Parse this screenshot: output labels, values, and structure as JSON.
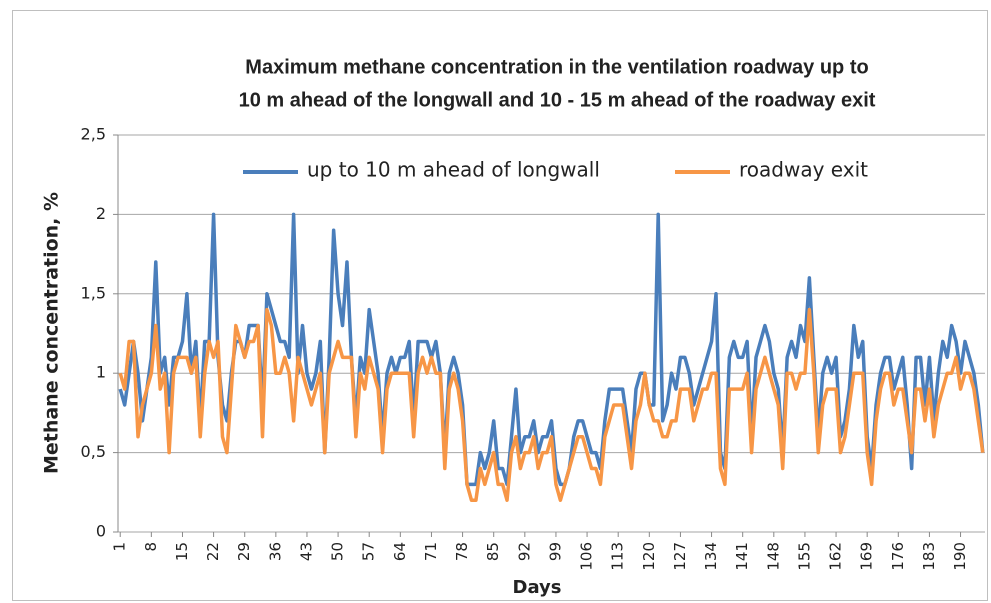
{
  "chart_data": {
    "type": "line",
    "title": [
      "Maximum methane concentration in the ventilation roadway up to",
      "10 m ahead of the longwall and 10 - 15 m ahead of the roadway exit"
    ],
    "x_label": "Days",
    "y_label": "Methane concentration, %",
    "ylim": [
      0,
      2.5
    ],
    "yticks": [
      0,
      {
        "value": 0.5,
        "label": "0,5"
      },
      1,
      {
        "value": 1.5,
        "label": "1,5"
      },
      2,
      {
        "value": 2.5,
        "label": "2,5"
      }
    ],
    "grid": true,
    "legend": "top",
    "categories": [
      1,
      null,
      null,
      null,
      null,
      null,
      null,
      8,
      null,
      null,
      null,
      null,
      null,
      null,
      15,
      null,
      null,
      null,
      null,
      null,
      null,
      22,
      null,
      null,
      null,
      null,
      null,
      null,
      29,
      null,
      null,
      null,
      null,
      null,
      null,
      36,
      null,
      null,
      null,
      null,
      null,
      null,
      43,
      null,
      null,
      null,
      null,
      null,
      null,
      50,
      null,
      null,
      null,
      null,
      null,
      null,
      57,
      null,
      null,
      null,
      null,
      null,
      null,
      64,
      null,
      null,
      null,
      null,
      null,
      null,
      71,
      null,
      null,
      null,
      null,
      null,
      null,
      78,
      null,
      null,
      null,
      null,
      null,
      null,
      85,
      null,
      null,
      null,
      null,
      null,
      null,
      92,
      null,
      null,
      null,
      null,
      null,
      null,
      99,
      null,
      null,
      null,
      null,
      null,
      null,
      106,
      null,
      null,
      null,
      null,
      null,
      null,
      113,
      null,
      null,
      null,
      null,
      null,
      null,
      120,
      null,
      null,
      null,
      null,
      null,
      null,
      127,
      null,
      null,
      null,
      null,
      null,
      null,
      134,
      null,
      null,
      null,
      null,
      null,
      null,
      141,
      null,
      null,
      null,
      null,
      null,
      null,
      148,
      null,
      null,
      null,
      null,
      null,
      null,
      155,
      null,
      null,
      null,
      null,
      null,
      null,
      162,
      null,
      null,
      null,
      null,
      null,
      null,
      169,
      null,
      null,
      null,
      null,
      null,
      null,
      176,
      null,
      null,
      null,
      null,
      null,
      null,
      183,
      null,
      null,
      null,
      null,
      null,
      null,
      190,
      null,
      null,
      null,
      null,
      null
    ],
    "series": [
      {
        "name": "up to 10 m ahead of longwall",
        "color": "#4a7ebb",
        "values": [
          0.9,
          0.8,
          1.0,
          1.2,
          1.0,
          0.7,
          0.9,
          1.1,
          1.7,
          1.0,
          1.1,
          0.8,
          1.1,
          1.1,
          1.2,
          1.5,
          1.0,
          1.2,
          0.7,
          1.2,
          1.2,
          2.0,
          1.1,
          0.8,
          0.7,
          1.0,
          1.2,
          1.2,
          1.1,
          1.3,
          1.3,
          1.3,
          0.8,
          1.5,
          1.4,
          1.3,
          1.2,
          1.2,
          1.1,
          2.0,
          1.0,
          1.3,
          1.0,
          0.9,
          1.0,
          1.2,
          0.5,
          1.1,
          1.9,
          1.5,
          1.3,
          1.7,
          1.1,
          0.7,
          1.1,
          1.0,
          1.4,
          1.2,
          1.0,
          0.6,
          1.0,
          1.1,
          1.0,
          1.1,
          1.1,
          1.2,
          0.7,
          1.2,
          1.2,
          1.2,
          1.1,
          1.2,
          1.0,
          0.5,
          1.0,
          1.1,
          1.0,
          0.8,
          0.3,
          0.3,
          0.3,
          0.5,
          0.4,
          0.5,
          0.7,
          0.4,
          0.4,
          0.3,
          0.6,
          0.9,
          0.5,
          0.6,
          0.6,
          0.7,
          0.5,
          0.6,
          0.6,
          0.7,
          0.4,
          0.3,
          0.3,
          0.4,
          0.6,
          0.7,
          0.7,
          0.6,
          0.5,
          0.5,
          0.4,
          0.7,
          0.9,
          0.9,
          0.9,
          0.9,
          0.7,
          0.5,
          0.9,
          1.0,
          1.0,
          0.8,
          0.8,
          2.0,
          0.7,
          0.8,
          1.0,
          0.9,
          1.1,
          1.1,
          1.0,
          0.8,
          0.9,
          1.0,
          1.1,
          1.2,
          1.5,
          0.5,
          0.4,
          1.1,
          1.2,
          1.1,
          1.1,
          1.2,
          0.6,
          1.1,
          1.2,
          1.3,
          1.2,
          1.0,
          0.9,
          0.5,
          1.1,
          1.2,
          1.1,
          1.3,
          1.2,
          1.6,
          1.1,
          0.6,
          1.0,
          1.1,
          1.0,
          1.1,
          0.6,
          0.7,
          0.9,
          1.3,
          1.1,
          1.2,
          0.6,
          0.4,
          0.8,
          1.0,
          1.1,
          1.1,
          0.9,
          1.0,
          1.1,
          0.8,
          0.4,
          1.1,
          1.1,
          0.8,
          1.1,
          0.7,
          1.0,
          1.2,
          1.1,
          1.3,
          1.2,
          1.0,
          1.2,
          1.1,
          1.0,
          0.8,
          0.5
        ]
      },
      {
        "name": "roadway exit",
        "color": "#f79646",
        "values": [
          1.0,
          0.9,
          1.2,
          1.2,
          0.6,
          0.8,
          0.9,
          1.0,
          1.3,
          0.9,
          1.0,
          0.5,
          1.0,
          1.1,
          1.1,
          1.1,
          1.0,
          1.1,
          0.6,
          1.0,
          1.2,
          1.1,
          1.2,
          0.6,
          0.5,
          0.9,
          1.3,
          1.2,
          1.1,
          1.2,
          1.2,
          1.3,
          0.6,
          1.4,
          1.3,
          1.0,
          1.0,
          1.1,
          1.0,
          0.7,
          1.1,
          1.0,
          0.9,
          0.8,
          0.9,
          1.0,
          0.5,
          1.0,
          1.1,
          1.2,
          1.1,
          1.1,
          1.1,
          0.6,
          1.0,
          0.9,
          1.1,
          1.0,
          0.9,
          0.5,
          0.9,
          1.0,
          1.0,
          1.0,
          1.0,
          1.0,
          0.6,
          1.0,
          1.1,
          1.0,
          1.1,
          1.0,
          1.0,
          0.4,
          0.9,
          1.0,
          0.9,
          0.7,
          0.3,
          0.2,
          0.2,
          0.4,
          0.3,
          0.4,
          0.5,
          0.3,
          0.3,
          0.2,
          0.5,
          0.6,
          0.4,
          0.5,
          0.5,
          0.6,
          0.4,
          0.5,
          0.5,
          0.6,
          0.3,
          0.2,
          0.3,
          0.4,
          0.5,
          0.6,
          0.6,
          0.5,
          0.4,
          0.4,
          0.3,
          0.6,
          0.7,
          0.8,
          0.8,
          0.8,
          0.6,
          0.4,
          0.7,
          0.8,
          1.0,
          0.8,
          0.7,
          0.7,
          0.6,
          0.6,
          0.7,
          0.7,
          0.9,
          0.9,
          0.9,
          0.7,
          0.8,
          0.9,
          0.9,
          1.0,
          1.0,
          0.4,
          0.3,
          0.9,
          0.9,
          0.9,
          0.9,
          1.0,
          0.5,
          0.9,
          1.0,
          1.1,
          1.0,
          0.9,
          0.8,
          0.4,
          1.0,
          1.0,
          0.9,
          1.0,
          1.0,
          1.4,
          1.0,
          0.5,
          0.8,
          0.9,
          0.9,
          0.9,
          0.5,
          0.6,
          0.8,
          1.0,
          1.0,
          1.0,
          0.5,
          0.3,
          0.7,
          0.9,
          1.0,
          1.0,
          0.8,
          0.9,
          0.9,
          0.7,
          0.5,
          0.9,
          0.9,
          0.7,
          0.9,
          0.6,
          0.8,
          0.9,
          1.0,
          1.0,
          1.1,
          0.9,
          1.0,
          1.0,
          0.9,
          0.7,
          0.5
        ]
      }
    ]
  }
}
